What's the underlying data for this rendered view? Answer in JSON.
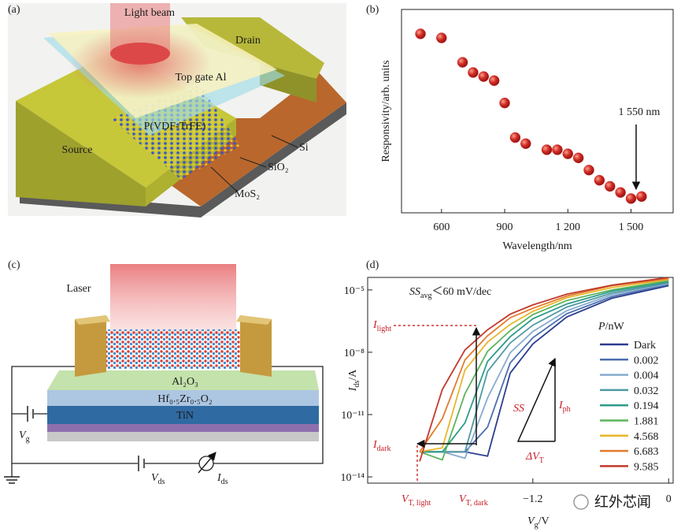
{
  "panels": {
    "a": {
      "label": "(a)",
      "texts": {
        "light_beam": "Light beam",
        "drain": "Drain",
        "top_gate": "Top gate Al",
        "pvdf": "P(VDF-TrFE)",
        "source": "Source",
        "si": "Si",
        "sio2": "SiO₂",
        "mos2": "MoS₂"
      }
    },
    "c": {
      "label": "(c)",
      "texts": {
        "laser": "Laser",
        "al2o3": "Al₂O₃",
        "hzo": "Hf₀.₅Zr₀.₅O₂",
        "tin": "TiN"
      },
      "vg": [
        "V",
        "g"
      ],
      "vds": [
        "V",
        "ds"
      ],
      "ids": [
        "I",
        "ds"
      ]
    }
  },
  "chart_data": [
    {
      "type": "scatter",
      "panel_label": "(b)",
      "x": [
        500,
        600,
        700,
        750,
        800,
        850,
        900,
        950,
        1000,
        1100,
        1150,
        1200,
        1250,
        1300,
        1350,
        1400,
        1450,
        1500,
        1550
      ],
      "values": [
        8.8,
        8.6,
        7.4,
        6.9,
        6.7,
        6.5,
        5.4,
        3.7,
        3.4,
        3.1,
        3.1,
        2.9,
        2.7,
        2.1,
        1.6,
        1.3,
        1.0,
        0.7,
        0.8
      ],
      "color": "#c8262a",
      "xlim": [
        410,
        1700
      ],
      "xticks": [
        600,
        900,
        {
          "value": 1200,
          "label": "1 200"
        },
        {
          "value": 1500,
          "label": "1 500"
        }
      ],
      "ylim": [
        0,
        10
      ],
      "x_label": "Wavelength/nm",
      "y_label": "Responsivity/arb. units",
      "annotation": "1 550 nm"
    },
    {
      "type": "line",
      "panel_label": "(d)",
      "log_y": true,
      "x": [
        -2.2,
        -2.0,
        -1.8,
        -1.6,
        -1.4,
        -1.2,
        -0.9,
        -0.5,
        0
      ],
      "series": [
        {
          "name": "Dark",
          "color": "#2b3d8f",
          "values": [
            1.6e-13,
            1.6e-13,
            1.6e-13,
            1e-13,
            1e-09,
            2.5e-08,
            5e-07,
            4e-06,
            1.6e-05
          ]
        },
        {
          "name": "0.002",
          "color": "#4c6fae",
          "values": [
            1.6e-13,
            1.6e-13,
            1.6e-13,
            2.5e-12,
            3.1e-09,
            5e-08,
            7.2e-07,
            4.8e-06,
            1.8e-05
          ]
        },
        {
          "name": "0.004",
          "color": "#86abcf",
          "values": [
            1.6e-13,
            1.6e-13,
            7.9e-14,
            6.3e-11,
            9.5e-09,
            1e-07,
            1e-06,
            5.9e-06,
            2e-05
          ]
        },
        {
          "name": "0.032",
          "color": "#4f9aa3",
          "values": [
            1.6e-13,
            1.6e-13,
            1.6e-13,
            1.2e-09,
            2.8e-08,
            2e-07,
            1.5e-06,
            7.1e-06,
            2.2e-05
          ]
        },
        {
          "name": "0.194",
          "color": "#2e9c8a",
          "values": [
            1.6e-13,
            1.6e-13,
            4e-12,
            3.6e-09,
            5.6e-08,
            4.1e-07,
            2.1e-06,
            8.7e-06,
            2.5e-05
          ]
        },
        {
          "name": "1.881",
          "color": "#5cb35c",
          "values": [
            1.6e-13,
            6.6e-14,
            1e-10,
            1.1e-08,
            1.1e-07,
            6.5e-07,
            3.1e-06,
            1e-05,
            2.8e-05
          ]
        },
        {
          "name": "4.568",
          "color": "#e8b62b",
          "values": [
            1.6e-13,
            2.5e-13,
            1.4e-09,
            3.1e-08,
            2.2e-07,
            9.3e-07,
            4.2e-06,
            1.3e-05,
            3.2e-05
          ]
        },
        {
          "name": "6.683",
          "color": "#e27b2c",
          "values": [
            1.6e-13,
            6.3e-12,
            4.3e-09,
            6.2e-08,
            4.6e-07,
            1.3e-06,
            5.1e-06,
            1.6e-05,
            3.5e-05
          ]
        },
        {
          "name": "9.585",
          "color": "#c23a2c",
          "values": [
            5.6e-14,
            1.6e-10,
            1.3e-08,
            1.2e-07,
            6.8e-07,
            1.9e-06,
            6.2e-06,
            1.7e-05,
            4e-05
          ]
        }
      ],
      "xlim": [
        -2.66,
        0.04
      ],
      "xticks": [
        {
          "value": -1.2,
          "label": "−1.2"
        },
        0
      ],
      "ylim": [
        5e-15,
        4e-05
      ],
      "yticks": [
        {
          "value": 1e-05,
          "label": "10⁻⁵"
        },
        {
          "value": 1e-08,
          "label": "10⁻⁸"
        },
        {
          "value": 1e-11,
          "label": "10⁻¹¹"
        },
        {
          "value": 1e-14,
          "label": "10⁻¹⁴"
        }
      ],
      "x_label": [
        "V",
        "g",
        "/V"
      ],
      "y_label": [
        "I",
        "ds",
        "/A"
      ],
      "legend_title": [
        "P",
        "/nW"
      ],
      "annotations": {
        "ss": [
          "SS",
          "avg",
          "＜60 mV/dec"
        ],
        "i_light": [
          "I",
          "light"
        ],
        "i_dark": [
          "I",
          "dark"
        ],
        "vt_light": [
          "V",
          "T, light"
        ],
        "vt_dark": [
          "V",
          "T, dark"
        ],
        "ss_tri": "SS",
        "i_ph": [
          "I",
          "ph"
        ],
        "dvt": [
          "ΔV",
          "T"
        ]
      }
    }
  ],
  "watermark": "红外芯闻"
}
